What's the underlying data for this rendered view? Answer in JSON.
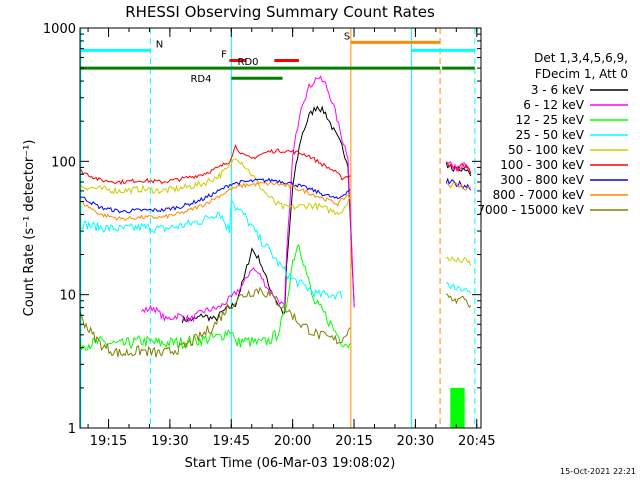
{
  "chart_data": {
    "type": "line",
    "title": "RHESSI Observing Summary Count Rates",
    "xlabel": "Start Time (06-Mar-03 19:08:02)",
    "ylabel": "Count Rate (s⁻¹ detector⁻¹)",
    "y_scale": "log",
    "ylim": [
      1,
      1000
    ],
    "xlim_minutes_since_start": [
      0,
      98
    ],
    "x_ticks": [
      {
        "label": "19:15",
        "min": 6.97
      },
      {
        "label": "19:30",
        "min": 21.97
      },
      {
        "label": "19:45",
        "min": 36.97
      },
      {
        "label": "20:00",
        "min": 51.97
      },
      {
        "label": "20:15",
        "min": 66.97
      },
      {
        "label": "20:30",
        "min": 81.97
      },
      {
        "label": "20:45",
        "min": 96.97
      }
    ],
    "y_ticks": [
      {
        "label": "1",
        "value": 1
      },
      {
        "label": "10",
        "value": 10
      },
      {
        "label": "100",
        "value": 100
      },
      {
        "label": "1000",
        "value": 1000
      }
    ],
    "legend": {
      "position": "right",
      "header1": "Det 1,3,4,5,6,9,",
      "header2": "FDecim 1, Att 0"
    },
    "series": [
      {
        "name": "3 - 6 keV",
        "color": "#000000",
        "points": [
          [
            25,
            6.5
          ],
          [
            28,
            6.5
          ],
          [
            30,
            7
          ],
          [
            33,
            6.5
          ],
          [
            35,
            7.5
          ],
          [
            36.5,
            8
          ],
          [
            38,
            8.5
          ],
          [
            40,
            13
          ],
          [
            42,
            22
          ],
          [
            44,
            18
          ],
          [
            46,
            12
          ],
          [
            48,
            9
          ],
          [
            50,
            7
          ],
          [
            50.5,
            16
          ],
          [
            52,
            65
          ],
          [
            54,
            150
          ],
          [
            56,
            220
          ],
          [
            58,
            260
          ],
          [
            60,
            230
          ],
          [
            62,
            170
          ],
          [
            64,
            130
          ],
          [
            65.5,
            95
          ],
          [
            67,
            8
          ]
        ]
      },
      {
        "name": "6 - 12 keV",
        "color": "#ff00ff",
        "points": [
          [
            15,
            7.5
          ],
          [
            18,
            8
          ],
          [
            21,
            6.5
          ],
          [
            24,
            7
          ],
          [
            27,
            6.5
          ],
          [
            30,
            7.5
          ],
          [
            34,
            8
          ],
          [
            37,
            9.5
          ],
          [
            40,
            12
          ],
          [
            42,
            16
          ],
          [
            44,
            14
          ],
          [
            46,
            11
          ],
          [
            48,
            9.5
          ],
          [
            50,
            8
          ],
          [
            50.5,
            20
          ],
          [
            52,
            110
          ],
          [
            54,
            260
          ],
          [
            56,
            360
          ],
          [
            58,
            430
          ],
          [
            60,
            380
          ],
          [
            62,
            260
          ],
          [
            64,
            150
          ],
          [
            65.5,
            110
          ],
          [
            67,
            8
          ]
        ]
      },
      {
        "name": "12 - 25 keV",
        "color": "#00ff00",
        "points": [
          [
            0,
            4.2
          ],
          [
            5,
            4.4
          ],
          [
            10,
            4.2
          ],
          [
            15,
            4.5
          ],
          [
            20,
            4.3
          ],
          [
            25,
            4.4
          ],
          [
            30,
            4.6
          ],
          [
            34,
            4.8
          ],
          [
            37,
            5.5
          ],
          [
            38,
            4.3
          ],
          [
            40,
            4.5
          ],
          [
            42,
            4.4
          ],
          [
            44,
            4.3
          ],
          [
            46,
            4.5
          ],
          [
            48,
            5
          ],
          [
            50,
            7
          ],
          [
            52,
            18
          ],
          [
            53.5,
            25
          ],
          [
            55,
            16
          ],
          [
            57,
            9
          ],
          [
            60,
            7
          ],
          [
            62,
            5.5
          ],
          [
            64,
            4.5
          ],
          [
            66,
            4.2
          ]
        ]
      },
      {
        "name": "25 - 50 keV",
        "color": "#00ffff",
        "points": [
          [
            0,
            34
          ],
          [
            5,
            32
          ],
          [
            10,
            31
          ],
          [
            15,
            32
          ],
          [
            20,
            31
          ],
          [
            25,
            33
          ],
          [
            30,
            36
          ],
          [
            34,
            42
          ],
          [
            36.5,
            30
          ],
          [
            37,
            55
          ],
          [
            38,
            45
          ],
          [
            40,
            40
          ],
          [
            42,
            32
          ],
          [
            44,
            26
          ],
          [
            46,
            22
          ],
          [
            48,
            18
          ],
          [
            50,
            15
          ],
          [
            52,
            13
          ],
          [
            54,
            12
          ],
          [
            56,
            11
          ],
          [
            58,
            10
          ],
          [
            60,
            10
          ],
          [
            62,
            10
          ],
          [
            64,
            10
          ]
        ]
      },
      {
        "name": "50 - 100 keV",
        "color": "#cccc00",
        "points": [
          [
            0,
            65
          ],
          [
            5,
            62
          ],
          [
            10,
            60
          ],
          [
            15,
            62
          ],
          [
            20,
            60
          ],
          [
            25,
            63
          ],
          [
            30,
            68
          ],
          [
            34,
            78
          ],
          [
            36.5,
            90
          ],
          [
            38,
            110
          ],
          [
            40,
            95
          ],
          [
            42,
            80
          ],
          [
            44,
            65
          ],
          [
            46,
            55
          ],
          [
            48,
            48
          ],
          [
            50,
            45
          ],
          [
            52,
            45
          ],
          [
            54,
            46
          ],
          [
            56,
            47
          ],
          [
            58,
            46
          ],
          [
            60,
            44
          ],
          [
            62,
            42
          ],
          [
            64,
            42
          ],
          [
            66,
            55
          ]
        ]
      },
      {
        "name": "100 - 300 keV",
        "color": "#ff0000",
        "points": [
          [
            0,
            85
          ],
          [
            5,
            72
          ],
          [
            10,
            70
          ],
          [
            15,
            72
          ],
          [
            20,
            70
          ],
          [
            25,
            74
          ],
          [
            30,
            80
          ],
          [
            34,
            90
          ],
          [
            36.5,
            100
          ],
          [
            38,
            130
          ],
          [
            40,
            110
          ],
          [
            42,
            105
          ],
          [
            44,
            112
          ],
          [
            46,
            118
          ],
          [
            48,
            120
          ],
          [
            50,
            120
          ],
          [
            52,
            118
          ],
          [
            54,
            115
          ],
          [
            56,
            110
          ],
          [
            58,
            100
          ],
          [
            60,
            92
          ],
          [
            62,
            85
          ],
          [
            64,
            75
          ],
          [
            66,
            78
          ]
        ]
      },
      {
        "name": "300 - 800 keV",
        "color": "#0000ff",
        "points": [
          [
            0,
            55
          ],
          [
            5,
            45
          ],
          [
            10,
            42
          ],
          [
            15,
            43
          ],
          [
            20,
            43
          ],
          [
            25,
            46
          ],
          [
            30,
            52
          ],
          [
            34,
            60
          ],
          [
            37,
            68
          ],
          [
            40,
            70
          ],
          [
            44,
            72
          ],
          [
            48,
            72
          ],
          [
            52,
            68
          ],
          [
            56,
            62
          ],
          [
            60,
            56
          ],
          [
            63,
            52
          ],
          [
            66,
            62
          ]
        ]
      },
      {
        "name": "800 - 7000 keV",
        "color": "#ff8c00",
        "points": [
          [
            0,
            50
          ],
          [
            5,
            40
          ],
          [
            10,
            37
          ],
          [
            15,
            38
          ],
          [
            20,
            38
          ],
          [
            25,
            41
          ],
          [
            30,
            47
          ],
          [
            34,
            55
          ],
          [
            37,
            62
          ],
          [
            40,
            66
          ],
          [
            44,
            68
          ],
          [
            48,
            68
          ],
          [
            52,
            64
          ],
          [
            56,
            58
          ],
          [
            60,
            52
          ],
          [
            63,
            48
          ],
          [
            66,
            58
          ]
        ]
      },
      {
        "name": "7000 - 15000 keV",
        "color": "#808000",
        "points": [
          [
            0,
            7
          ],
          [
            3,
            5
          ],
          [
            6,
            4
          ],
          [
            10,
            3.6
          ],
          [
            15,
            3.8
          ],
          [
            20,
            3.6
          ],
          [
            25,
            4
          ],
          [
            30,
            5
          ],
          [
            33,
            6
          ],
          [
            36,
            8
          ],
          [
            38,
            9
          ],
          [
            40,
            10
          ],
          [
            42,
            10.5
          ],
          [
            44,
            11
          ],
          [
            46,
            10
          ],
          [
            48,
            9
          ],
          [
            50,
            8
          ],
          [
            52,
            7
          ],
          [
            54,
            6
          ],
          [
            56,
            5.5
          ],
          [
            58,
            5
          ],
          [
            60,
            4.8
          ],
          [
            62,
            4.6
          ],
          [
            64,
            4.5
          ],
          [
            66,
            6
          ]
        ]
      }
    ],
    "post_gap_series": [
      {
        "color": "#000000",
        "points": [
          [
            89.5,
            95
          ],
          [
            92,
            85
          ],
          [
            94,
            90
          ],
          [
            95.5,
            80
          ]
        ]
      },
      {
        "color": "#ff00ff",
        "points": [
          [
            89.5,
            100
          ],
          [
            92,
            90
          ],
          [
            94,
            95
          ],
          [
            95.5,
            85
          ]
        ]
      },
      {
        "color": "#ff0000",
        "points": [
          [
            89.5,
            95
          ],
          [
            92,
            88
          ],
          [
            94,
            92
          ],
          [
            95.5,
            82
          ]
        ]
      },
      {
        "color": "#0000ff",
        "points": [
          [
            89.5,
            70
          ],
          [
            92,
            68
          ],
          [
            94,
            66
          ],
          [
            95.5,
            64
          ]
        ]
      },
      {
        "color": "#ff8c00",
        "points": [
          [
            89.5,
            68
          ],
          [
            92,
            66
          ],
          [
            94,
            64
          ],
          [
            95.5,
            62
          ]
        ]
      },
      {
        "color": "#cccc00",
        "points": [
          [
            89.5,
            19
          ],
          [
            92,
            18
          ],
          [
            94,
            18
          ],
          [
            95.5,
            17
          ]
        ]
      },
      {
        "color": "#00ffff",
        "points": [
          [
            89.5,
            12
          ],
          [
            92,
            11
          ],
          [
            94,
            11
          ],
          [
            95.5,
            10
          ]
        ]
      },
      {
        "color": "#808000",
        "points": [
          [
            89.5,
            10
          ],
          [
            92,
            9
          ],
          [
            94,
            9.5
          ],
          [
            95.5,
            8
          ]
        ]
      }
    ],
    "green_block": {
      "color": "#00ff00",
      "x0": 90.5,
      "x1": 94,
      "value": 2
    },
    "vertical_markers": [
      {
        "min": 0.2,
        "color": "#00ffff",
        "style": "solid"
      },
      {
        "min": 17.2,
        "color": "#00ffff",
        "style": "dashed"
      },
      {
        "min": 37.0,
        "color": "#00ffff",
        "style": "solid"
      },
      {
        "min": 66.2,
        "color": "#ff8c00",
        "style": "solid"
      },
      {
        "min": 81.0,
        "color": "#00ffff",
        "style": "solid"
      },
      {
        "min": 88.0,
        "color": "#ff8c00",
        "style": "dashed"
      },
      {
        "min": 96.5,
        "color": "#00ffff",
        "style": "dashed"
      }
    ],
    "state_bars": [
      {
        "label": "N",
        "color": "#00ffff",
        "y": 680,
        "segments": [
          [
            0,
            17.2
          ],
          [
            81,
            96.5
          ]
        ],
        "label_at": 18.5
      },
      {
        "label": "S",
        "color": "#ff8c00",
        "y": 780,
        "segments": [
          [
            66.2,
            88
          ]
        ],
        "label_at": 64.5
      },
      {
        "label": "F",
        "color": "#ff0000",
        "y": 570,
        "segments": [
          [
            36.5,
            40.5
          ],
          [
            47.5,
            53.5
          ]
        ],
        "label_at": 34.5
      },
      {
        "label": "RD0",
        "color": "#008000",
        "y": 500,
        "segments": [
          [
            0,
            81
          ],
          [
            81,
            88
          ],
          [
            88.5,
            96.5
          ]
        ],
        "label_at": 38.5
      },
      {
        "label": "RD4",
        "color": "#008000",
        "y": 420,
        "segments": [
          [
            37,
            49.5
          ]
        ],
        "label_at": 27
      }
    ]
  },
  "footer": {
    "timestamp": "15-Oct-2021 22:21"
  }
}
